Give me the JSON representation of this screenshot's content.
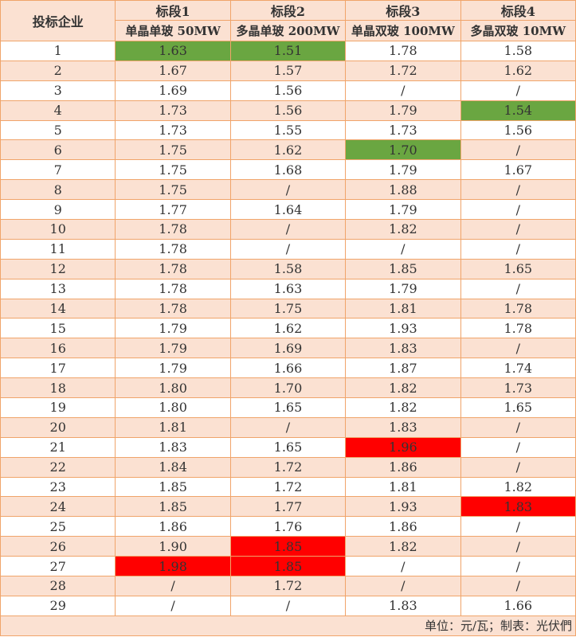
{
  "chart_data": {
    "type": "table",
    "corner_header": "投标企业",
    "columns": [
      {
        "section": "标段1",
        "spec": "单晶单玻 50MW"
      },
      {
        "section": "标段2",
        "spec": "多晶单玻 200MW"
      },
      {
        "section": "标段3",
        "spec": "单晶双玻 100MW"
      },
      {
        "section": "标段4",
        "spec": "多晶双玻 10MW"
      }
    ],
    "rows": [
      [
        "1",
        "1.63",
        "1.51",
        "1.78",
        "1.58"
      ],
      [
        "2",
        "1.67",
        "1.57",
        "1.72",
        "1.62"
      ],
      [
        "3",
        "1.69",
        "1.56",
        "/",
        "/"
      ],
      [
        "4",
        "1.73",
        "1.56",
        "1.79",
        "1.54"
      ],
      [
        "5",
        "1.73",
        "1.55",
        "1.73",
        "1.56"
      ],
      [
        "6",
        "1.75",
        "1.62",
        "1.70",
        "/"
      ],
      [
        "7",
        "1.75",
        "1.68",
        "1.79",
        "1.67"
      ],
      [
        "8",
        "1.75",
        "/",
        "1.88",
        "/"
      ],
      [
        "9",
        "1.77",
        "1.64",
        "1.79",
        "/"
      ],
      [
        "10",
        "1.78",
        "/",
        "1.82",
        "/"
      ],
      [
        "11",
        "1.78",
        "/",
        "/",
        "/"
      ],
      [
        "12",
        "1.78",
        "1.58",
        "1.85",
        "1.65"
      ],
      [
        "13",
        "1.78",
        "1.63",
        "1.79",
        "/"
      ],
      [
        "14",
        "1.78",
        "1.75",
        "1.81",
        "1.78"
      ],
      [
        "15",
        "1.79",
        "1.62",
        "1.93",
        "1.78"
      ],
      [
        "16",
        "1.79",
        "1.69",
        "1.83",
        "/"
      ],
      [
        "17",
        "1.79",
        "1.66",
        "1.87",
        "1.74"
      ],
      [
        "18",
        "1.80",
        "1.70",
        "1.82",
        "1.73"
      ],
      [
        "19",
        "1.80",
        "1.65",
        "1.82",
        "1.65"
      ],
      [
        "20",
        "1.81",
        "/",
        "1.83",
        "/"
      ],
      [
        "21",
        "1.83",
        "1.65",
        "1.96",
        "/"
      ],
      [
        "22",
        "1.84",
        "1.72",
        "1.86",
        "/"
      ],
      [
        "23",
        "1.85",
        "1.72",
        "1.81",
        "1.82"
      ],
      [
        "24",
        "1.85",
        "1.77",
        "1.93",
        "1.83"
      ],
      [
        "25",
        "1.86",
        "1.76",
        "1.86",
        "/"
      ],
      [
        "26",
        "1.90",
        "1.85",
        "1.82",
        "/"
      ],
      [
        "27",
        "1.98",
        "1.85",
        "/",
        "/"
      ],
      [
        "28",
        "/",
        "1.72",
        "/",
        "/"
      ],
      [
        "29",
        "/",
        "/",
        "1.83",
        "1.66"
      ]
    ],
    "highlights": {
      "min": [
        [
          1,
          1
        ],
        [
          1,
          2
        ],
        [
          6,
          3
        ],
        [
          4,
          4
        ]
      ],
      "max": [
        [
          27,
          1
        ],
        [
          26,
          2
        ],
        [
          27,
          2
        ],
        [
          21,
          3
        ],
        [
          24,
          4
        ]
      ]
    },
    "colors": {
      "min": "#6aa641",
      "max": "#ff0000",
      "band": "#fbe1d2",
      "border": "#f0a46a"
    },
    "footnote": "单位：元/瓦；制表：光伏們"
  }
}
